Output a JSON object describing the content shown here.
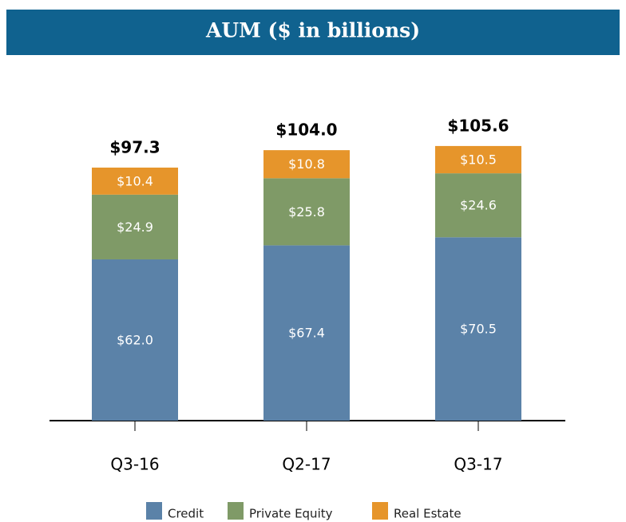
{
  "chart_data": {
    "type": "stacked-bar",
    "title": "AUM ($ in billions)",
    "categories": [
      "Q3-16",
      "Q2-17",
      "Q3-17"
    ],
    "series": [
      {
        "name": "Credit",
        "color": "#5b82a8",
        "values": [
          62.0,
          67.4,
          70.5
        ],
        "value_labels": [
          "$62.0",
          "$67.4",
          "$70.5"
        ]
      },
      {
        "name": "Private Equity",
        "color": "#7f9a67",
        "values": [
          24.9,
          25.8,
          24.6
        ],
        "value_labels": [
          "$24.9",
          "$25.8",
          "$24.6"
        ]
      },
      {
        "name": "Real Estate",
        "color": "#e6952b",
        "values": [
          10.4,
          10.8,
          10.5
        ],
        "value_labels": [
          "$10.4",
          "$10.8",
          "$10.5"
        ]
      }
    ],
    "totals": {
      "values": [
        97.3,
        104.0,
        105.6
      ],
      "labels": [
        "$97.3",
        "$104.0",
        "$105.6"
      ]
    },
    "ylim": [
      0,
      120
    ]
  }
}
